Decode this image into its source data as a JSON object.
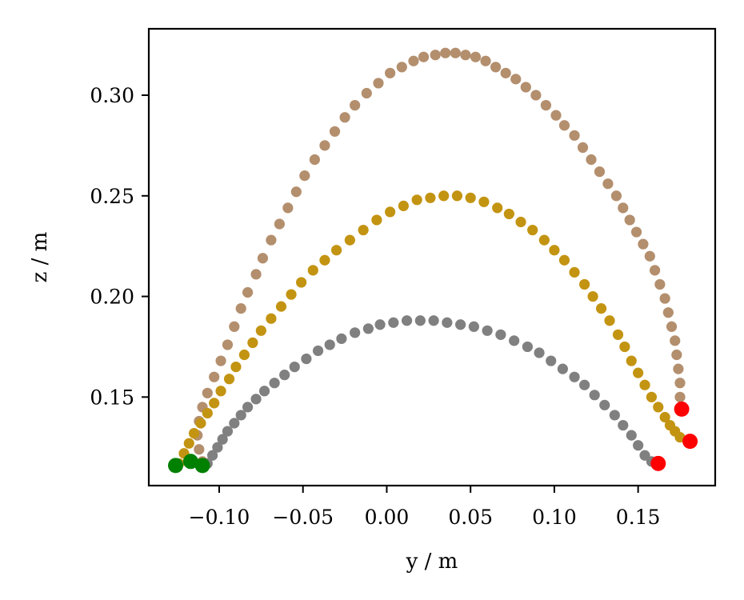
{
  "chart_data": {
    "type": "scatter",
    "title": "",
    "xlabel": "y / m",
    "ylabel": "z / m",
    "xlim": [
      -0.142,
      0.196
    ],
    "ylim": [
      0.106,
      0.333
    ],
    "xticks": [
      -0.1,
      -0.05,
      0.0,
      0.05,
      0.1,
      0.15
    ],
    "xtick_labels": [
      "−0.10",
      "−0.05",
      "0.00",
      "0.05",
      "0.10",
      "0.15"
    ],
    "yticks": [
      0.15,
      0.2,
      0.25,
      0.3
    ],
    "ytick_labels": [
      "0.15",
      "0.20",
      "0.25",
      "0.30"
    ],
    "grid": false,
    "legend": "none",
    "series": [
      {
        "name": "tan trajectory",
        "color": "#b38f6e",
        "points": [
          [
            -0.11,
            0.118
          ],
          [
            -0.112,
            0.124
          ],
          [
            -0.113,
            0.131
          ],
          [
            -0.112,
            0.138
          ],
          [
            -0.11,
            0.145
          ],
          [
            -0.107,
            0.152
          ],
          [
            -0.103,
            0.16
          ],
          [
            -0.099,
            0.168
          ],
          [
            -0.095,
            0.176
          ],
          [
            -0.091,
            0.185
          ],
          [
            -0.087,
            0.194
          ],
          [
            -0.083,
            0.202
          ],
          [
            -0.078,
            0.211
          ],
          [
            -0.074,
            0.219
          ],
          [
            -0.069,
            0.228
          ],
          [
            -0.064,
            0.236
          ],
          [
            -0.059,
            0.244
          ],
          [
            -0.054,
            0.252
          ],
          [
            -0.049,
            0.26
          ],
          [
            -0.043,
            0.268
          ],
          [
            -0.037,
            0.275
          ],
          [
            -0.031,
            0.282
          ],
          [
            -0.025,
            0.289
          ],
          [
            -0.019,
            0.295
          ],
          [
            -0.012,
            0.301
          ],
          [
            -0.005,
            0.306
          ],
          [
            0.002,
            0.311
          ],
          [
            0.009,
            0.314
          ],
          [
            0.016,
            0.317
          ],
          [
            0.022,
            0.319
          ],
          [
            0.029,
            0.32
          ],
          [
            0.035,
            0.321
          ],
          [
            0.041,
            0.321
          ],
          [
            0.047,
            0.32
          ],
          [
            0.053,
            0.319
          ],
          [
            0.059,
            0.317
          ],
          [
            0.065,
            0.314
          ],
          [
            0.071,
            0.311
          ],
          [
            0.077,
            0.308
          ],
          [
            0.083,
            0.304
          ],
          [
            0.089,
            0.3
          ],
          [
            0.095,
            0.295
          ],
          [
            0.101,
            0.29
          ],
          [
            0.106,
            0.285
          ],
          [
            0.112,
            0.28
          ],
          [
            0.117,
            0.274
          ],
          [
            0.122,
            0.268
          ],
          [
            0.127,
            0.262
          ],
          [
            0.132,
            0.256
          ],
          [
            0.137,
            0.25
          ],
          [
            0.141,
            0.244
          ],
          [
            0.145,
            0.238
          ],
          [
            0.149,
            0.232
          ],
          [
            0.153,
            0.226
          ],
          [
            0.157,
            0.22
          ],
          [
            0.16,
            0.213
          ],
          [
            0.163,
            0.206
          ],
          [
            0.166,
            0.199
          ],
          [
            0.168,
            0.192
          ],
          [
            0.17,
            0.185
          ],
          [
            0.172,
            0.178
          ],
          [
            0.173,
            0.171
          ],
          [
            0.174,
            0.164
          ],
          [
            0.175,
            0.157
          ],
          [
            0.175,
            0.15
          ]
        ]
      },
      {
        "name": "gold trajectory",
        "color": "#c39412",
        "points": [
          [
            -0.124,
            0.117
          ],
          [
            -0.121,
            0.122
          ],
          [
            -0.118,
            0.127
          ],
          [
            -0.115,
            0.132
          ],
          [
            -0.111,
            0.137
          ],
          [
            -0.107,
            0.142
          ],
          [
            -0.103,
            0.147
          ],
          [
            -0.099,
            0.153
          ],
          [
            -0.094,
            0.159
          ],
          [
            -0.09,
            0.165
          ],
          [
            -0.085,
            0.171
          ],
          [
            -0.08,
            0.177
          ],
          [
            -0.075,
            0.183
          ],
          [
            -0.069,
            0.189
          ],
          [
            -0.063,
            0.195
          ],
          [
            -0.057,
            0.201
          ],
          [
            -0.051,
            0.207
          ],
          [
            -0.044,
            0.213
          ],
          [
            -0.037,
            0.218
          ],
          [
            -0.03,
            0.223
          ],
          [
            -0.022,
            0.228
          ],
          [
            -0.014,
            0.233
          ],
          [
            -0.006,
            0.238
          ],
          [
            0.002,
            0.242
          ],
          [
            0.01,
            0.245
          ],
          [
            0.018,
            0.248
          ],
          [
            0.026,
            0.249
          ],
          [
            0.034,
            0.25
          ],
          [
            0.042,
            0.25
          ],
          [
            0.05,
            0.249
          ],
          [
            0.058,
            0.247
          ],
          [
            0.066,
            0.244
          ],
          [
            0.073,
            0.241
          ],
          [
            0.08,
            0.237
          ],
          [
            0.087,
            0.233
          ],
          [
            0.094,
            0.228
          ],
          [
            0.1,
            0.223
          ],
          [
            0.106,
            0.218
          ],
          [
            0.112,
            0.212
          ],
          [
            0.118,
            0.206
          ],
          [
            0.123,
            0.2
          ],
          [
            0.128,
            0.194
          ],
          [
            0.133,
            0.188
          ],
          [
            0.138,
            0.181
          ],
          [
            0.142,
            0.175
          ],
          [
            0.146,
            0.168
          ],
          [
            0.15,
            0.162
          ],
          [
            0.154,
            0.156
          ],
          [
            0.158,
            0.15
          ],
          [
            0.162,
            0.145
          ],
          [
            0.166,
            0.14
          ],
          [
            0.169,
            0.136
          ],
          [
            0.172,
            0.133
          ],
          [
            0.175,
            0.13
          ]
        ]
      },
      {
        "name": "gray trajectory",
        "color": "#808080",
        "points": [
          [
            -0.107,
            0.117
          ],
          [
            -0.104,
            0.121
          ],
          [
            -0.101,
            0.125
          ],
          [
            -0.098,
            0.129
          ],
          [
            -0.095,
            0.133
          ],
          [
            -0.091,
            0.137
          ],
          [
            -0.087,
            0.141
          ],
          [
            -0.083,
            0.145
          ],
          [
            -0.078,
            0.149
          ],
          [
            -0.073,
            0.153
          ],
          [
            -0.067,
            0.157
          ],
          [
            -0.061,
            0.161
          ],
          [
            -0.055,
            0.165
          ],
          [
            -0.048,
            0.169
          ],
          [
            -0.041,
            0.173
          ],
          [
            -0.034,
            0.176
          ],
          [
            -0.027,
            0.179
          ],
          [
            -0.019,
            0.182
          ],
          [
            -0.011,
            0.184
          ],
          [
            -0.004,
            0.186
          ],
          [
            0.004,
            0.187
          ],
          [
            0.012,
            0.188
          ],
          [
            0.02,
            0.188
          ],
          [
            0.028,
            0.188
          ],
          [
            0.036,
            0.187
          ],
          [
            0.044,
            0.186
          ],
          [
            0.052,
            0.185
          ],
          [
            0.06,
            0.183
          ],
          [
            0.068,
            0.181
          ],
          [
            0.076,
            0.178
          ],
          [
            0.084,
            0.175
          ],
          [
            0.091,
            0.172
          ],
          [
            0.098,
            0.168
          ],
          [
            0.105,
            0.164
          ],
          [
            0.112,
            0.16
          ],
          [
            0.118,
            0.156
          ],
          [
            0.124,
            0.151
          ],
          [
            0.13,
            0.146
          ],
          [
            0.136,
            0.141
          ],
          [
            0.141,
            0.136
          ],
          [
            0.146,
            0.131
          ],
          [
            0.15,
            0.126
          ],
          [
            0.154,
            0.121
          ],
          [
            0.158,
            0.118
          ]
        ]
      }
    ],
    "start_points": {
      "color": "#008000",
      "points": [
        [
          -0.126,
          0.116
        ],
        [
          -0.117,
          0.118
        ],
        [
          -0.11,
          0.116
        ]
      ]
    },
    "end_points": {
      "color": "#ff0000",
      "points": [
        [
          0.176,
          0.144
        ],
        [
          0.181,
          0.128
        ],
        [
          0.162,
          0.117
        ]
      ]
    }
  }
}
